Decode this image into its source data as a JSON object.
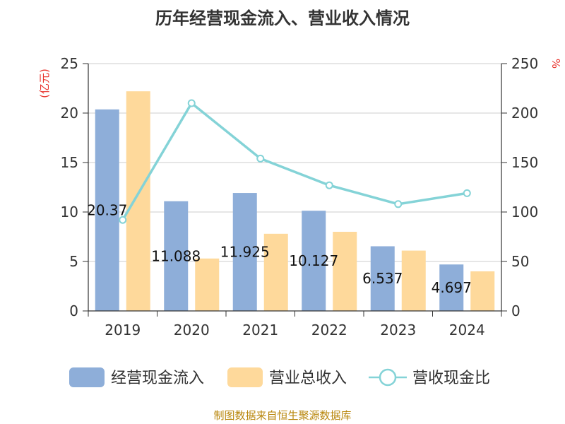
{
  "chart_data": {
    "type": "bar",
    "title": "历年经营现金流入、营业收入情况",
    "categories": [
      "2019",
      "2020",
      "2021",
      "2022",
      "2023",
      "2024"
    ],
    "y_left": {
      "unit": "(亿元)",
      "ylim": [
        0,
        25
      ],
      "ticks": [
        "0",
        "5",
        "10",
        "15",
        "20",
        "25"
      ]
    },
    "y_right": {
      "unit": "%",
      "ylim": [
        0,
        250
      ],
      "ticks": [
        "0",
        "50",
        "100",
        "150",
        "200",
        "250"
      ]
    },
    "series": [
      {
        "name": "经营现金流入",
        "type": "bar",
        "axis": "left",
        "color": "#8eaed9",
        "values": [
          20.37,
          11.088,
          11.925,
          10.127,
          6.537,
          4.697
        ],
        "labels": [
          "20.37",
          "11.088",
          "11.925",
          "10.127",
          "6.537",
          "4.697"
        ]
      },
      {
        "name": "营业总收入",
        "type": "bar",
        "axis": "left",
        "color": "#fed99b",
        "values": [
          22.2,
          5.3,
          7.8,
          8.0,
          6.1,
          4.0
        ]
      },
      {
        "name": "营收现金比",
        "type": "line",
        "axis": "right",
        "color": "#84d3d7",
        "values": [
          92,
          210,
          154,
          127,
          108,
          119
        ]
      }
    ],
    "grid": true,
    "legend": "bottom"
  },
  "footer": "制图数据来自恒生聚源数据库"
}
